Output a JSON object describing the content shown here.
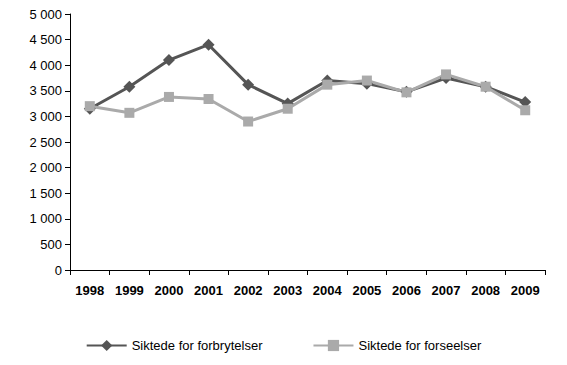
{
  "chart_data": {
    "type": "line",
    "categories": [
      "1998",
      "1999",
      "2000",
      "2001",
      "2002",
      "2003",
      "2004",
      "2005",
      "2006",
      "2007",
      "2008",
      "2009"
    ],
    "series": [
      {
        "name": "Siktede for forbrytelser",
        "color": "#555555",
        "marker": "diamond",
        "values": [
          3150,
          3580,
          4100,
          4400,
          3620,
          3250,
          3700,
          3640,
          3480,
          3750,
          3580,
          3280
        ]
      },
      {
        "name": "Siktede for forseelser",
        "color": "#aaaaaa",
        "marker": "square",
        "values": [
          3200,
          3070,
          3380,
          3340,
          2900,
          3150,
          3620,
          3700,
          3470,
          3820,
          3580,
          3120
        ]
      }
    ],
    "ylim": [
      0,
      5000
    ],
    "yticks": [
      0,
      500,
      {
        "value": 1000,
        "label": "1 000"
      },
      {
        "value": 1500,
        "label": "1 500"
      },
      {
        "value": 2000,
        "label": "2 000"
      },
      {
        "value": 2500,
        "label": "2 500"
      },
      {
        "value": 3000,
        "label": "3 000"
      },
      {
        "value": 3500,
        "label": "3 500"
      },
      {
        "value": 4000,
        "label": "4 000"
      },
      {
        "value": 4500,
        "label": "4 500"
      },
      {
        "value": 5000,
        "label": "5 000"
      }
    ],
    "grid": false,
    "legend": "bottom"
  }
}
